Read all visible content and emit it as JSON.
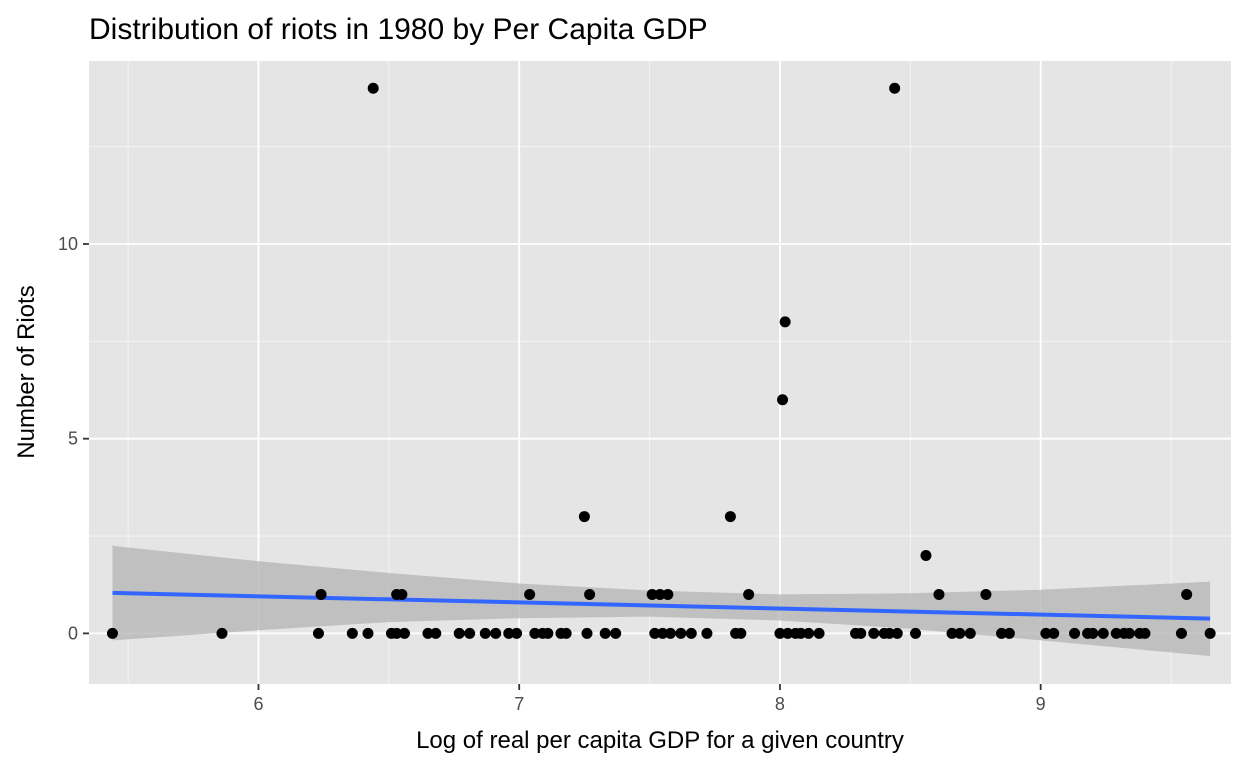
{
  "chart_data": {
    "type": "scatter",
    "title": "Distribution of riots in 1980 by Per Capita GDP",
    "xlabel": "Log of real per capita GDP for a given country",
    "ylabel": "Number of Riots",
    "xlim": [
      5.35,
      9.73
    ],
    "ylim": [
      -1.3,
      14.7
    ],
    "x_ticks": [
      6,
      7,
      8,
      9
    ],
    "y_ticks": [
      0,
      5,
      10
    ],
    "x_tick_labels": [
      "6",
      "7",
      "8",
      "9"
    ],
    "y_tick_labels": [
      "0",
      "5",
      "10"
    ],
    "grid": true,
    "colors": {
      "panel_background": "#e5e5e5",
      "grid": "#ffffff",
      "points": "#000000",
      "fit_line": "#3366ff",
      "confidence_band": "#b3b3b3"
    },
    "points": [
      {
        "x": 5.44,
        "y": 0
      },
      {
        "x": 5.86,
        "y": 0
      },
      {
        "x": 6.23,
        "y": 0
      },
      {
        "x": 6.24,
        "y": 1
      },
      {
        "x": 6.36,
        "y": 0
      },
      {
        "x": 6.42,
        "y": 0
      },
      {
        "x": 6.44,
        "y": 14
      },
      {
        "x": 6.51,
        "y": 0
      },
      {
        "x": 6.53,
        "y": 0
      },
      {
        "x": 6.53,
        "y": 1
      },
      {
        "x": 6.55,
        "y": 1
      },
      {
        "x": 6.56,
        "y": 0
      },
      {
        "x": 6.65,
        "y": 0
      },
      {
        "x": 6.68,
        "y": 0
      },
      {
        "x": 6.77,
        "y": 0
      },
      {
        "x": 6.81,
        "y": 0
      },
      {
        "x": 6.87,
        "y": 0
      },
      {
        "x": 6.91,
        "y": 0
      },
      {
        "x": 6.96,
        "y": 0
      },
      {
        "x": 6.99,
        "y": 0
      },
      {
        "x": 7.04,
        "y": 1
      },
      {
        "x": 7.06,
        "y": 0
      },
      {
        "x": 7.09,
        "y": 0
      },
      {
        "x": 7.11,
        "y": 0
      },
      {
        "x": 7.16,
        "y": 0
      },
      {
        "x": 7.18,
        "y": 0
      },
      {
        "x": 7.25,
        "y": 3
      },
      {
        "x": 7.26,
        "y": 0
      },
      {
        "x": 7.27,
        "y": 1
      },
      {
        "x": 7.33,
        "y": 0
      },
      {
        "x": 7.37,
        "y": 0
      },
      {
        "x": 7.51,
        "y": 1
      },
      {
        "x": 7.52,
        "y": 0
      },
      {
        "x": 7.54,
        "y": 1
      },
      {
        "x": 7.55,
        "y": 0
      },
      {
        "x": 7.57,
        "y": 1
      },
      {
        "x": 7.58,
        "y": 0
      },
      {
        "x": 7.62,
        "y": 0
      },
      {
        "x": 7.66,
        "y": 0
      },
      {
        "x": 7.72,
        "y": 0
      },
      {
        "x": 7.81,
        "y": 3
      },
      {
        "x": 7.83,
        "y": 0
      },
      {
        "x": 7.85,
        "y": 0
      },
      {
        "x": 7.88,
        "y": 1
      },
      {
        "x": 8.0,
        "y": 0
      },
      {
        "x": 8.01,
        "y": 6
      },
      {
        "x": 8.02,
        "y": 8
      },
      {
        "x": 8.03,
        "y": 0
      },
      {
        "x": 8.06,
        "y": 0
      },
      {
        "x": 8.08,
        "y": 0
      },
      {
        "x": 8.11,
        "y": 0
      },
      {
        "x": 8.15,
        "y": 0
      },
      {
        "x": 8.29,
        "y": 0
      },
      {
        "x": 8.31,
        "y": 0
      },
      {
        "x": 8.36,
        "y": 0
      },
      {
        "x": 8.4,
        "y": 0
      },
      {
        "x": 8.42,
        "y": 0
      },
      {
        "x": 8.44,
        "y": 14
      },
      {
        "x": 8.45,
        "y": 0
      },
      {
        "x": 8.52,
        "y": 0
      },
      {
        "x": 8.56,
        "y": 2
      },
      {
        "x": 8.61,
        "y": 1
      },
      {
        "x": 8.66,
        "y": 0
      },
      {
        "x": 8.69,
        "y": 0
      },
      {
        "x": 8.73,
        "y": 0
      },
      {
        "x": 8.79,
        "y": 1
      },
      {
        "x": 8.85,
        "y": 0
      },
      {
        "x": 8.88,
        "y": 0
      },
      {
        "x": 9.02,
        "y": 0
      },
      {
        "x": 9.05,
        "y": 0
      },
      {
        "x": 9.13,
        "y": 0
      },
      {
        "x": 9.18,
        "y": 0
      },
      {
        "x": 9.2,
        "y": 0
      },
      {
        "x": 9.24,
        "y": 0
      },
      {
        "x": 9.29,
        "y": 0
      },
      {
        "x": 9.32,
        "y": 0
      },
      {
        "x": 9.34,
        "y": 0
      },
      {
        "x": 9.38,
        "y": 0
      },
      {
        "x": 9.4,
        "y": 0
      },
      {
        "x": 9.54,
        "y": 0
      },
      {
        "x": 9.56,
        "y": 1
      },
      {
        "x": 9.65,
        "y": 0
      }
    ],
    "fit_line": {
      "x": [
        5.44,
        9.65
      ],
      "y": [
        1.04,
        0.38
      ]
    },
    "confidence_band": {
      "x": [
        5.44,
        6.0,
        6.5,
        7.0,
        7.5,
        8.0,
        8.5,
        9.0,
        9.65
      ],
      "upper": [
        2.25,
        1.85,
        1.55,
        1.28,
        1.1,
        1.0,
        1.03,
        1.12,
        1.33
      ],
      "lower": [
        -0.18,
        0.08,
        0.29,
        0.39,
        0.43,
        0.33,
        0.12,
        -0.18,
        -0.58
      ]
    }
  }
}
